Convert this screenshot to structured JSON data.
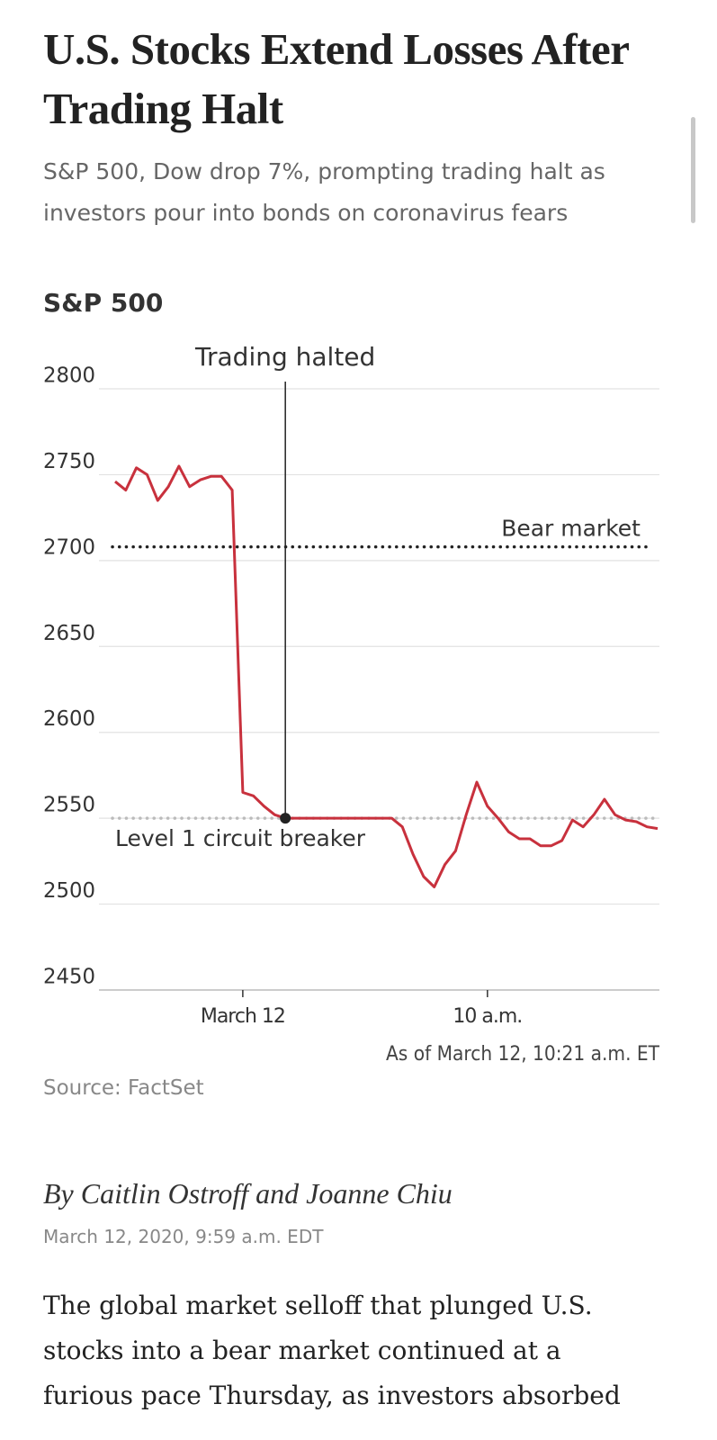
{
  "header": {
    "title": "U.S. Stocks Extend Losses After Trading Halt",
    "subtitle": "S&P 500, Dow drop 7%, prompting trading halt as investors pour into bonds on coronavirus fears"
  },
  "chart_data": {
    "type": "line",
    "title": "S&P 500",
    "categories": [
      null,
      null,
      null,
      null,
      null,
      null,
      null,
      null,
      null,
      null,
      null,
      null,
      "March 12",
      null,
      null,
      null,
      null,
      null,
      null,
      null,
      null,
      null,
      null,
      null,
      null,
      null,
      null,
      null,
      null,
      null,
      null,
      null,
      null,
      null,
      null,
      "10 a.m.",
      null,
      null,
      null,
      null,
      null,
      null,
      null,
      null,
      null,
      null,
      null,
      null,
      null,
      null,
      null,
      null
    ],
    "values": [
      2746,
      2741,
      2754,
      2750,
      2735,
      2743,
      2755,
      2743,
      2747,
      2749,
      2749,
      2741,
      2565,
      2563,
      2557,
      2552,
      2550,
      2550,
      2550,
      2550,
      2550,
      2550,
      2550,
      2550,
      2550,
      2550,
      2550,
      2545,
      2529,
      2516,
      2510,
      2523,
      2531,
      2552,
      2571,
      2557,
      2550,
      2542,
      2538,
      2538,
      2534,
      2534,
      2537,
      2549,
      2545,
      2552,
      2561,
      2552,
      2549,
      2548,
      2545,
      2544
    ],
    "color": "#c8313d",
    "ylim": [
      2450,
      2800
    ],
    "yticks": [
      2450,
      2500,
      2550,
      2600,
      2650,
      2700,
      2750,
      2800
    ],
    "grid": true,
    "reference_lines": [
      {
        "label": "Bear market",
        "value": 2708,
        "color": "#222222"
      },
      {
        "label": "Level 1 circuit breaker",
        "value": 2550,
        "color": "#bbbbbb"
      }
    ],
    "annotations": [
      {
        "text": "Trading halted",
        "at": 16
      }
    ],
    "note": "As of March 12, 10:21 a.m. ET",
    "source": "Source: FactSet"
  },
  "article": {
    "byline": "By Caitlin Ostroff and Joanne Chiu",
    "date": "March 12, 2020, 9:59 a.m. EDT",
    "body": "The global market selloff that plunged U.S. stocks into a bear market continued at a furious pace Thursday, as investors absorbed"
  }
}
